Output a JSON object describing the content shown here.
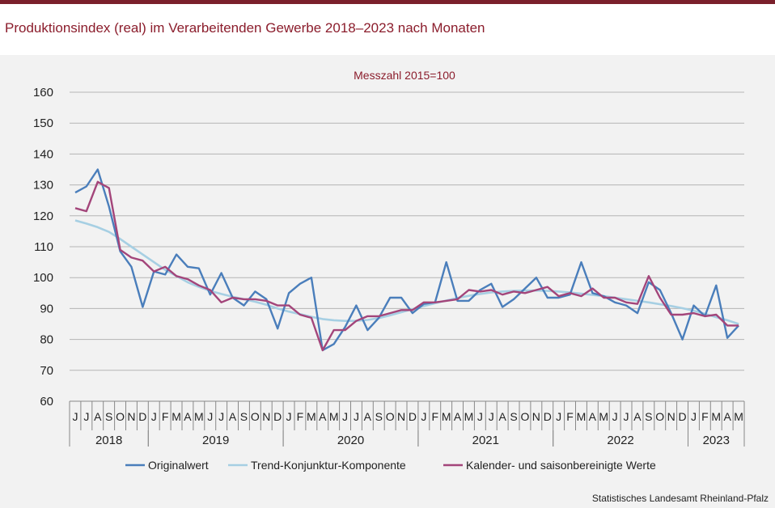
{
  "header": {
    "title": "Produktionsindex (real) im Verarbeitenden Gewerbe 2018–2023 nach Monaten"
  },
  "footer": {
    "source": "Statistisches Landesamt Rheinland-Pfalz"
  },
  "colors": {
    "topbar": "#7a1f2b",
    "title": "#8b1d2c",
    "panel": "#f2f2f2"
  },
  "chart_data": {
    "type": "line",
    "subtitle": "Messzahl 2015=100",
    "ylim": [
      60,
      160
    ],
    "yticks": [
      60,
      70,
      80,
      90,
      100,
      110,
      120,
      130,
      140,
      150,
      160
    ],
    "grid": true,
    "legend_position": "bottom",
    "month_labels": [
      "J",
      "J",
      "A",
      "S",
      "O",
      "N",
      "D",
      "J",
      "F",
      "M",
      "A",
      "M",
      "J",
      "J",
      "A",
      "S",
      "O",
      "N",
      "D",
      "J",
      "F",
      "M",
      "A",
      "M",
      "J",
      "J",
      "A",
      "S",
      "O",
      "N",
      "D",
      "J",
      "F",
      "M",
      "A",
      "M",
      "J",
      "J",
      "A",
      "S",
      "O",
      "N",
      "D",
      "J",
      "F",
      "M",
      "A",
      "M",
      "J",
      "J",
      "A",
      "S",
      "O",
      "N",
      "D",
      "J",
      "F",
      "M",
      "A",
      "M"
    ],
    "years": [
      {
        "label": "2018",
        "start": 0,
        "count": 7
      },
      {
        "label": "2019",
        "start": 7,
        "count": 12
      },
      {
        "label": "2020",
        "start": 19,
        "count": 12
      },
      {
        "label": "2021",
        "start": 31,
        "count": 12
      },
      {
        "label": "2022",
        "start": 43,
        "count": 12
      },
      {
        "label": "2023",
        "start": 55,
        "count": 5
      }
    ],
    "series": [
      {
        "name": "Originalwert",
        "color": "#4a7ebb",
        "values": [
          127.5,
          129.5,
          135,
          123,
          108.5,
          103.5,
          90.5,
          102,
          101,
          107.5,
          103.5,
          103,
          94.5,
          101.5,
          93.5,
          91,
          95.5,
          93,
          83.5,
          95,
          98,
          100,
          76.5,
          78.5,
          84,
          91,
          83,
          87,
          93.5,
          93.5,
          88.5,
          91.5,
          92,
          105,
          92.5,
          92.5,
          96,
          98,
          90.5,
          93,
          96.5,
          100,
          93.5,
          93.5,
          94.5,
          105,
          95,
          94,
          92,
          91,
          88.5,
          98.5,
          96,
          88.5,
          80,
          91,
          87.5,
          97.5,
          80.5,
          84.5
        ]
      },
      {
        "name": "Trend-Konjunktur-Komponente",
        "color": "#a6cfe3",
        "values": [
          118.5,
          117.5,
          116.3,
          114.8,
          112.5,
          110,
          107.5,
          105,
          102.5,
          100.5,
          98.5,
          97,
          95.7,
          94.7,
          93.8,
          93,
          92.2,
          91.2,
          90,
          89,
          88.2,
          87.3,
          86.6,
          86.2,
          86,
          86,
          86.3,
          86.9,
          87.8,
          88.8,
          89.8,
          90.8,
          91.7,
          92.6,
          93.4,
          94.1,
          94.7,
          95.2,
          95.5,
          95.7,
          95.8,
          95.8,
          95.7,
          95.5,
          95.2,
          94.8,
          94.4,
          94,
          93.5,
          93,
          92.5,
          92,
          91.4,
          90.8,
          90.1,
          89.3,
          88.3,
          87.2,
          86.2,
          85
        ]
      },
      {
        "name": "Kalender- und saisonbereinigte Werte",
        "color": "#a3457a",
        "values": [
          122.5,
          121.5,
          131,
          129,
          109,
          106.5,
          105.5,
          102,
          103.5,
          100.5,
          99.5,
          97.5,
          96,
          92,
          93.5,
          93,
          93,
          92.5,
          91,
          91,
          88,
          87,
          76.5,
          83,
          83,
          86,
          87.5,
          87.5,
          88.5,
          89.5,
          89.5,
          92,
          92,
          92.5,
          93,
          96,
          95.5,
          96,
          94.5,
          95.5,
          95,
          96,
          97,
          94,
          95,
          94,
          96.5,
          93.5,
          93.5,
          92,
          91.5,
          100.5,
          93.5,
          88,
          88,
          88.5,
          87.5,
          88,
          84.5,
          84.5
        ]
      }
    ]
  }
}
